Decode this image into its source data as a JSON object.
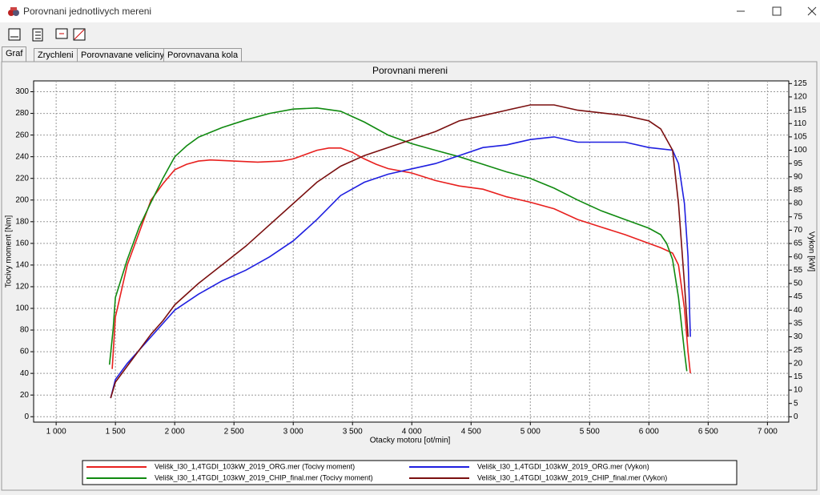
{
  "window": {
    "title": "Porovnani jednotlivych mereni",
    "tabs": [
      "Graf",
      "Zrychleni",
      "Porovnavane veliciny",
      "Porovnavana kola"
    ]
  },
  "chart_data": {
    "type": "line",
    "title": "Porovnani mereni",
    "x_label": "Otacky motoru [ot/min]",
    "y_label": "Tocivy moment [Nm]",
    "y2_label": "Vykon [kW]",
    "xlim": [
      810,
      7180
    ],
    "ylim": [
      -5,
      310
    ],
    "y2lim": [
      -2,
      126
    ],
    "grid": true,
    "xticks": [
      {
        "value": 1000,
        "label": "1 000"
      },
      {
        "value": 1500,
        "label": "1 500"
      },
      {
        "value": 2000,
        "label": "2 000"
      },
      {
        "value": 2500,
        "label": "2 500"
      },
      {
        "value": 3000,
        "label": "3 000"
      },
      {
        "value": 3500,
        "label": "3 500"
      },
      {
        "value": 4000,
        "label": "4 000"
      },
      {
        "value": 4500,
        "label": "4 500"
      },
      {
        "value": 5000,
        "label": "5 000"
      },
      {
        "value": 5500,
        "label": "5 500"
      },
      {
        "value": 6000,
        "label": "6 000"
      },
      {
        "value": 6500,
        "label": "6 500"
      },
      {
        "value": 7000,
        "label": "7 000"
      }
    ],
    "yticks": [
      0,
      20,
      40,
      60,
      80,
      100,
      120,
      140,
      160,
      180,
      200,
      220,
      240,
      260,
      280,
      300
    ],
    "y2ticks": [
      0,
      5,
      10,
      15,
      20,
      25,
      30,
      35,
      40,
      45,
      50,
      55,
      60,
      65,
      70,
      75,
      80,
      85,
      90,
      95,
      100,
      105,
      110,
      115,
      120,
      125
    ],
    "series": [
      {
        "name": "Velišk_I30_1,4TGDI_103kW_2019_ORG.mer  (Tocivy moment)",
        "color": "#e8201e",
        "x": [
          1473,
          1500,
          1600,
          1700,
          1800,
          1900,
          2000,
          2100,
          2200,
          2300,
          2500,
          2700,
          2900,
          3000,
          3100,
          3200,
          3300,
          3400,
          3500,
          3600,
          3700,
          3800,
          4000,
          4200,
          4400,
          4600,
          4800,
          5000,
          5200,
          5400,
          5600,
          5800,
          6000,
          6100,
          6200,
          6250,
          6300,
          6330,
          6350
        ],
        "values": [
          44,
          92,
          140,
          170,
          200,
          215,
          228,
          233,
          236,
          237,
          236,
          235,
          236,
          238,
          242,
          246,
          248,
          248,
          244,
          238,
          233,
          229,
          225,
          218,
          213,
          210,
          203,
          198,
          192,
          182,
          175,
          168,
          160,
          156,
          151,
          140,
          100,
          60,
          40
        ]
      },
      {
        "name": "Velišk_I30_1,4TGDI_103kW_2019_CHIP_final.mer  (Tocivy moment)",
        "color": "#108a10",
        "x": [
          1450,
          1480,
          1500,
          1600,
          1700,
          1800,
          1900,
          2000,
          2100,
          2200,
          2400,
          2600,
          2800,
          3000,
          3200,
          3400,
          3600,
          3800,
          4000,
          4200,
          4400,
          4600,
          4800,
          5000,
          5200,
          5400,
          5600,
          5800,
          6000,
          6100,
          6150,
          6200,
          6250,
          6300,
          6320
        ],
        "values": [
          48,
          80,
          110,
          145,
          175,
          198,
          220,
          240,
          250,
          258,
          267,
          274,
          280,
          284,
          285,
          282,
          272,
          260,
          252,
          246,
          240,
          233,
          226,
          220,
          211,
          200,
          190,
          182,
          174,
          168,
          160,
          145,
          110,
          60,
          42
        ]
      },
      {
        "name": "Velišk_I30_1,4TGDI_103kW_2019_ORG.mer  (Vykon)",
        "color": "#1f1fe0",
        "axis": "y2",
        "x": [
          1460,
          1500,
          1600,
          1700,
          1800,
          1900,
          2000,
          2200,
          2400,
          2600,
          2800,
          3000,
          3200,
          3400,
          3600,
          3800,
          4000,
          4200,
          4400,
          4600,
          4800,
          5000,
          5200,
          5400,
          5600,
          5800,
          6000,
          6200,
          6250,
          6300,
          6330,
          6350
        ],
        "values": [
          7,
          14,
          20,
          25,
          30,
          35,
          40,
          46,
          51,
          55,
          60,
          66,
          74,
          83,
          88,
          91,
          93,
          95,
          98,
          101,
          102,
          104,
          105,
          103,
          103,
          103,
          101,
          100,
          95,
          80,
          60,
          30
        ]
      },
      {
        "name": "Velišk_I30_1,4TGDI_103kW_2019_CHIP_final.mer  (Vykon)",
        "color": "#7a0f0f",
        "axis": "y2",
        "x": [
          1460,
          1500,
          1600,
          1700,
          1800,
          1900,
          2000,
          2200,
          2400,
          2600,
          2800,
          3000,
          3200,
          3400,
          3600,
          3800,
          4000,
          4200,
          4400,
          4600,
          4800,
          5000,
          5200,
          5400,
          5600,
          5800,
          6000,
          6100,
          6200,
          6250,
          6300,
          6330
        ],
        "values": [
          7,
          13,
          19,
          25,
          31,
          36,
          42,
          50,
          57,
          64,
          72,
          80,
          88,
          94,
          98,
          101,
          104,
          107,
          111,
          113,
          115,
          117,
          117,
          115,
          114,
          113,
          111,
          108,
          100,
          80,
          50,
          30
        ]
      }
    ]
  }
}
